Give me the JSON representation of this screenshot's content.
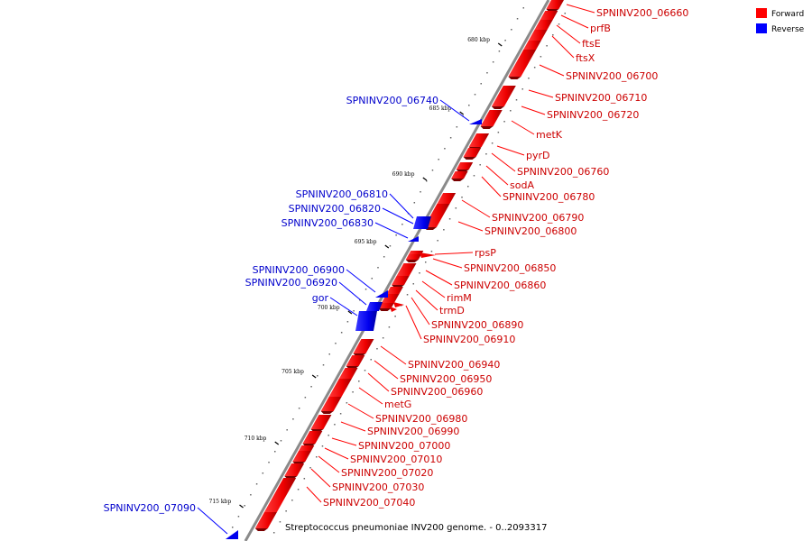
{
  "legend": {
    "forward_label": "Forward",
    "reverse_label": "Reverse",
    "forward_color": "#ff0000",
    "reverse_color": "#0000ff"
  },
  "caption": "Streptococcus pneumoniae INV200 genome. - 0..2093317",
  "ticks": [
    "680 kbp",
    "685 kbp",
    "690 kbp",
    "695 kbp",
    "700 kbp",
    "705 kbp",
    "710 kbp",
    "715 kbp"
  ],
  "forward_labels": [
    "SPNINV200_06660",
    "prfB",
    "ftsE",
    "ftsX",
    "SPNINV200_06700",
    "SPNINV200_06710",
    "SPNINV200_06720",
    "metK",
    "pyrD",
    "SPNINV200_06760",
    "sodA",
    "SPNINV200_06780",
    "SPNINV200_06790",
    "SPNINV200_06800",
    "rpsP",
    "SPNINV200_06850",
    "SPNINV200_06860",
    "rimM",
    "trmD",
    "SPNINV200_06890",
    "SPNINV200_06910",
    "SPNINV200_06940",
    "SPNINV200_06950",
    "SPNINV200_06960",
    "metG",
    "SPNINV200_06980",
    "SPNINV200_06990",
    "SPNINV200_07000",
    "SPNINV200_07010",
    "SPNINV200_07020",
    "SPNINV200_07030",
    "SPNINV200_07040"
  ],
  "reverse_labels": [
    "SPNINV200_06740",
    "SPNINV200_06810",
    "SPNINV200_06820",
    "SPNINV200_06830",
    "SPNINV200_06900",
    "SPNINV200_06920",
    "gor",
    "SPNINV200_07090"
  ]
}
